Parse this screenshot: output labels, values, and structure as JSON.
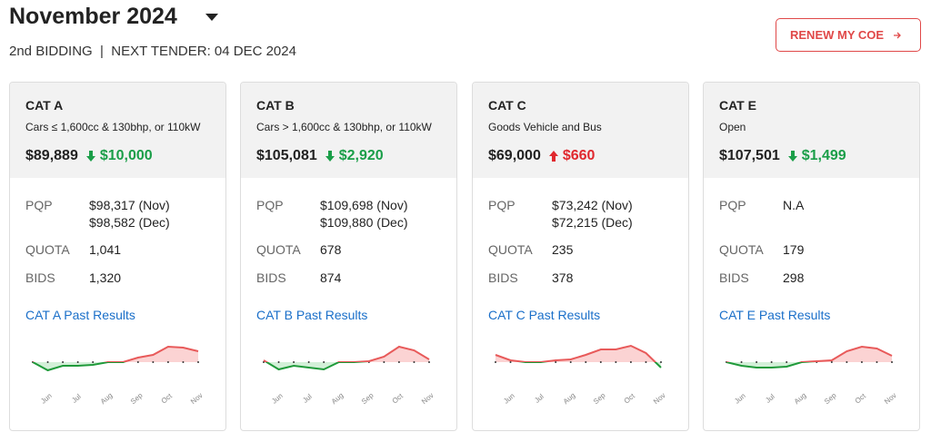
{
  "header": {
    "title": "November 2024",
    "subtitle": "2nd BIDDING  |  NEXT TENDER: 04 DEC 2024",
    "button": "RENEW MY COE"
  },
  "labels": {
    "pqp": "PQP",
    "quota": "QUOTA",
    "bids": "BIDS"
  },
  "trend_months": [
    null,
    "Jun",
    null,
    "Jul",
    null,
    "Aug",
    null,
    "Sep",
    null,
    "Oct",
    null,
    "Nov"
  ],
  "trend_ylim": [
    -15,
    25
  ],
  "cards": [
    {
      "category": "CAT A",
      "description": "Cars ≤ 1,600cc & 130bhp, or 110kW",
      "premium": "$89,889",
      "change": "$10,000",
      "direction": "down",
      "pqp": [
        "$98,317 (Nov)",
        "$98,582 (Dec)"
      ],
      "quota": "1,041",
      "bids": "1,320",
      "link": "CAT A Past Results",
      "trend": [
        0,
        -9,
        -4,
        -4,
        -3,
        0,
        0,
        5,
        8,
        17,
        16,
        12
      ]
    },
    {
      "category": "CAT B",
      "description": "Cars > 1,600cc & 130bhp, or 110kW",
      "premium": "$105,081",
      "change": "$2,920",
      "direction": "down",
      "pqp": [
        "$109,698 (Nov)",
        "$109,880 (Dec)"
      ],
      "quota": "678",
      "bids": "874",
      "link": "CAT B Past Results",
      "trend": [
        2,
        -8,
        -4,
        -6,
        -8,
        0,
        0,
        1,
        6,
        17,
        13,
        3
      ]
    },
    {
      "category": "CAT C",
      "description": "Goods Vehicle and Bus",
      "premium": "$69,000",
      "change": "$660",
      "direction": "up",
      "pqp": [
        "$73,242 (Nov)",
        "$72,215 (Dec)"
      ],
      "quota": "235",
      "bids": "378",
      "link": "CAT C Past Results",
      "trend": [
        8,
        2,
        0,
        0,
        2,
        3,
        8,
        14,
        14,
        18,
        10,
        -6
      ]
    },
    {
      "category": "CAT E",
      "description": "Open",
      "premium": "$107,501",
      "change": "$1,499",
      "direction": "down",
      "pqp": [
        "N.A"
      ],
      "quota": "179",
      "bids": "298",
      "link": "CAT E Past Results",
      "trend": [
        0,
        -4,
        -6,
        -6,
        -5,
        0,
        1,
        2,
        12,
        17,
        15,
        7
      ]
    }
  ]
}
